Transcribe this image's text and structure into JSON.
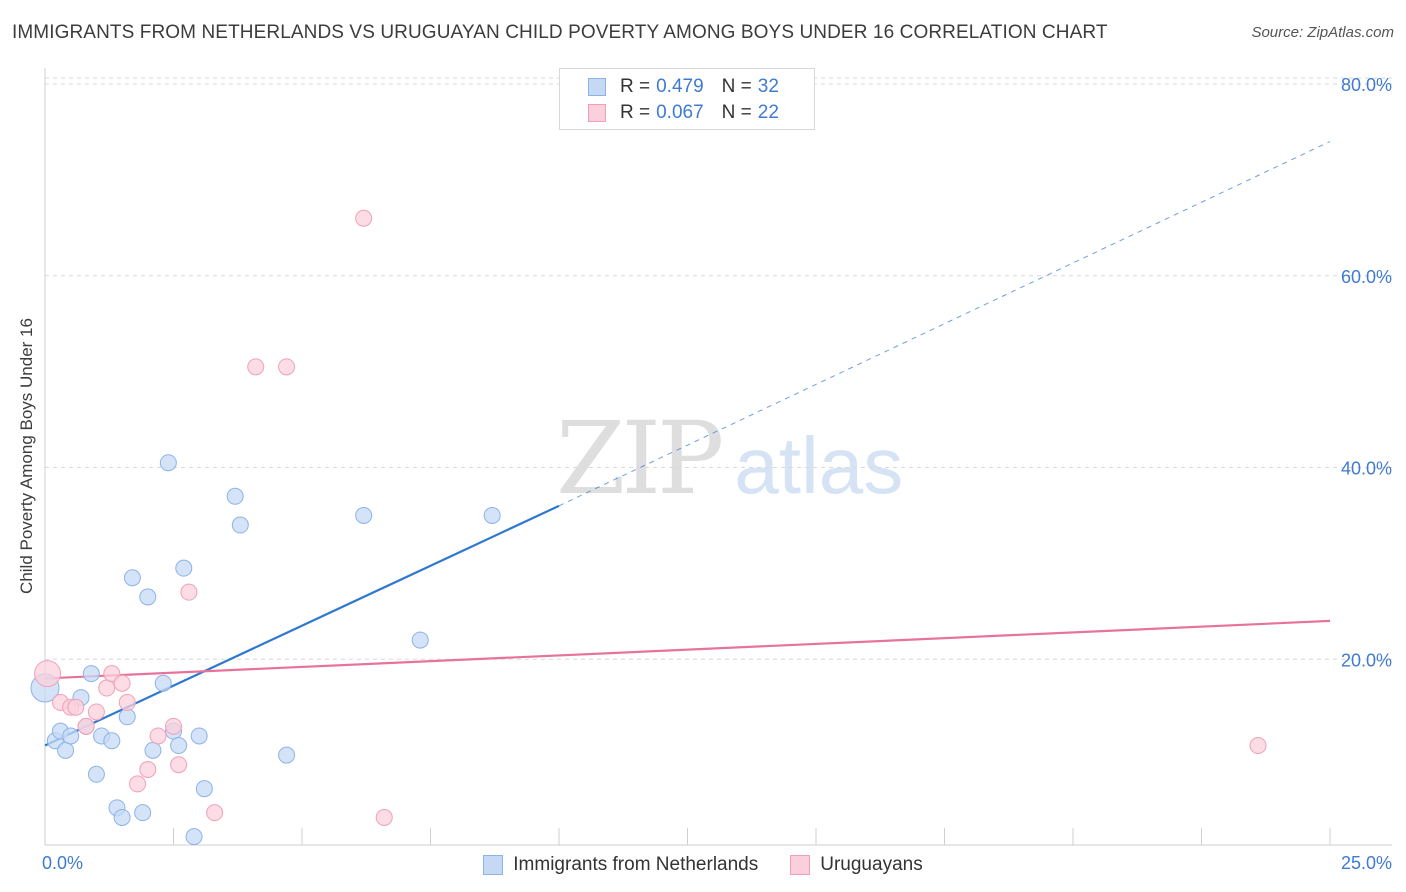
{
  "header": {
    "title": "IMMIGRANTS FROM NETHERLANDS VS URUGUAYAN CHILD POVERTY AMONG BOYS UNDER 16 CORRELATION CHART",
    "source": "Source: ZipAtlas.com"
  },
  "legend": {
    "series1": {
      "r_label": "R =",
      "r_value": "0.479",
      "n_label": "N =",
      "n_value": "32"
    },
    "series2": {
      "r_label": "R =",
      "r_value": "0.067",
      "n_label": "N =",
      "n_value": "22"
    }
  },
  "watermark": {
    "zip": "ZIP",
    "atlas": "atlas"
  },
  "colors": {
    "blue_fill": "#c5d9f5",
    "blue_stroke": "#8db3e6",
    "blue_line": "#2f78d0",
    "pink_fill": "#fbd0dc",
    "pink_stroke": "#f1a0b8",
    "pink_line": "#e8739a",
    "tick_label": "#3f7bd2",
    "grid": "#d9d9d9"
  },
  "chart_data": {
    "type": "scatter",
    "title": "IMMIGRANTS FROM NETHERLANDS VS URUGUAYAN CHILD POVERTY AMONG BOYS UNDER 16 CORRELATION CHART",
    "xlabel": "",
    "ylabel": "Child Poverty Among Boys Under 16",
    "xlim": [
      0,
      25
    ],
    "ylim": [
      0,
      80
    ],
    "x_tick_labels": [
      "0.0%",
      "25.0%"
    ],
    "y_ticks": [
      20,
      40,
      60,
      80
    ],
    "y_tick_labels": [
      "20.0%",
      "40.0%",
      "60.0%",
      "80.0%"
    ],
    "grid": true,
    "series": [
      {
        "name": "Immigrants from Netherlands",
        "color": "#c5d9f5",
        "points": [
          [
            0.0,
            17.0
          ],
          [
            0.2,
            11.5
          ],
          [
            0.3,
            12.5
          ],
          [
            0.4,
            10.5
          ],
          [
            0.5,
            12.0
          ],
          [
            0.7,
            16.0
          ],
          [
            0.8,
            13.0
          ],
          [
            0.9,
            18.5
          ],
          [
            1.0,
            8.0
          ],
          [
            1.1,
            12.0
          ],
          [
            1.3,
            11.5
          ],
          [
            1.4,
            4.5
          ],
          [
            1.5,
            3.5
          ],
          [
            1.6,
            14.0
          ],
          [
            1.7,
            28.5
          ],
          [
            1.9,
            4.0
          ],
          [
            2.0,
            26.5
          ],
          [
            2.1,
            10.5
          ],
          [
            2.3,
            17.5
          ],
          [
            2.4,
            40.5
          ],
          [
            2.5,
            12.5
          ],
          [
            2.6,
            11.0
          ],
          [
            2.7,
            29.5
          ],
          [
            2.9,
            1.5
          ],
          [
            3.0,
            12.0
          ],
          [
            3.1,
            6.5
          ],
          [
            3.7,
            37.0
          ],
          [
            3.8,
            34.0
          ],
          [
            4.7,
            10.0
          ],
          [
            6.2,
            35.0
          ],
          [
            7.3,
            22.0
          ],
          [
            8.7,
            35.0
          ]
        ],
        "trend": {
          "x": [
            0.0,
            10.0
          ],
          "y": [
            11.0,
            36.0
          ]
        },
        "trend_extension": {
          "x": [
            10.0,
            25.0
          ],
          "y": [
            36.0,
            74.0
          ]
        }
      },
      {
        "name": "Uruguayans",
        "color": "#fbd0dc",
        "points": [
          [
            0.05,
            18.5
          ],
          [
            0.3,
            15.5
          ],
          [
            0.5,
            15.0
          ],
          [
            0.6,
            15.0
          ],
          [
            0.8,
            13.0
          ],
          [
            1.0,
            14.5
          ],
          [
            1.2,
            17.0
          ],
          [
            1.3,
            18.5
          ],
          [
            1.5,
            17.5
          ],
          [
            1.6,
            15.5
          ],
          [
            1.8,
            7.0
          ],
          [
            2.0,
            8.5
          ],
          [
            2.2,
            12.0
          ],
          [
            2.5,
            13.0
          ],
          [
            2.6,
            9.0
          ],
          [
            2.8,
            27.0
          ],
          [
            3.3,
            4.0
          ],
          [
            4.1,
            50.5
          ],
          [
            4.7,
            50.5
          ],
          [
            6.2,
            66.0
          ],
          [
            6.6,
            3.5
          ],
          [
            23.6,
            11.0
          ]
        ],
        "trend": {
          "x": [
            0.0,
            25.0
          ],
          "y": [
            18.0,
            24.0
          ]
        }
      }
    ]
  },
  "bottom_legend": {
    "series1_label": "Immigrants from Netherlands",
    "series2_label": "Uruguayans"
  }
}
